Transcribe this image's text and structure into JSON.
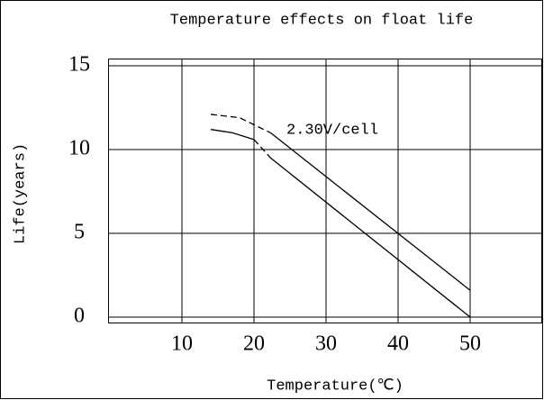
{
  "chart_data": {
    "type": "line",
    "title": "Temperature effects on float life",
    "xlabel": "Temperature(℃)",
    "ylabel": "Life(years)",
    "annotation": "2.30V/cell",
    "xlim": [
      0,
      60
    ],
    "xticks": [
      10,
      20,
      30,
      40,
      50
    ],
    "ylim": [
      0,
      15
    ],
    "yticks": [
      0,
      5,
      10,
      15
    ],
    "grid": true,
    "series": [
      {
        "color": "#000000",
        "dashed": true,
        "x": [
          14,
          18,
          22.3
        ],
        "values": [
          12.1,
          11.9,
          11.0
        ]
      },
      {
        "color": "#000000",
        "dashed": false,
        "x": [
          22.3,
          50
        ],
        "values": [
          11.0,
          1.6
        ]
      },
      {
        "color": "#000000",
        "dashed": false,
        "x": [
          14,
          17,
          20
        ],
        "values": [
          11.2,
          11.0,
          10.6
        ]
      },
      {
        "color": "#000000",
        "dashed": true,
        "x": [
          20,
          22.3
        ],
        "values": [
          10.6,
          9.5
        ]
      },
      {
        "color": "#000000",
        "dashed": false,
        "x": [
          22.3,
          50
        ],
        "values": [
          9.5,
          0
        ]
      }
    ]
  }
}
